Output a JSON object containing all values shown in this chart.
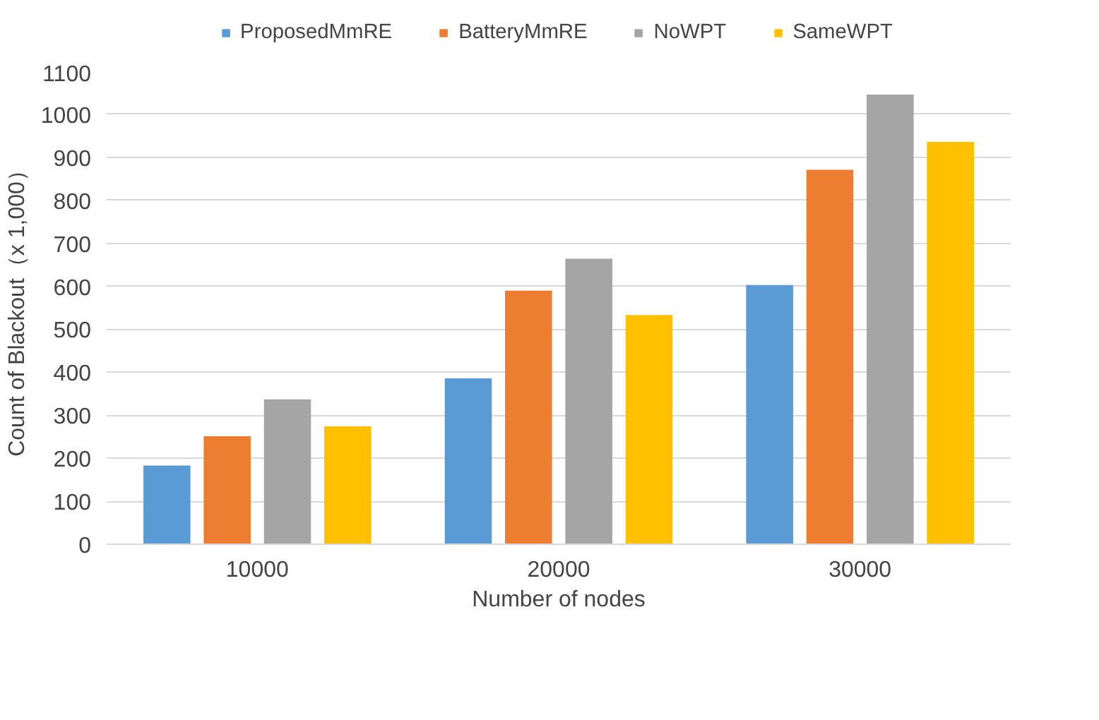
{
  "chart_data": {
    "type": "bar",
    "xlabel": "Number of nodes",
    "ylabel": "Count of Blackout（x 1,000）",
    "categories": [
      "10000",
      "20000",
      "30000"
    ],
    "series": [
      {
        "name": "ProposedMmRE",
        "color": "#5b9bd5",
        "values": [
          183,
          386,
          603
        ]
      },
      {
        "name": "BatteryMmRE",
        "color": "#ed7d31",
        "values": [
          251,
          590,
          871
        ]
      },
      {
        "name": "NoWPT",
        "color": "#a5a5a5",
        "values": [
          337,
          664,
          1046
        ]
      },
      {
        "name": "SameWPT",
        "color": "#ffc000",
        "values": [
          274,
          533,
          936
        ]
      }
    ],
    "ylim": [
      0,
      1100
    ],
    "yticks": [
      0,
      100,
      200,
      300,
      400,
      500,
      600,
      700,
      800,
      900,
      1000,
      1100
    ],
    "grid": "y",
    "legend": "top"
  }
}
